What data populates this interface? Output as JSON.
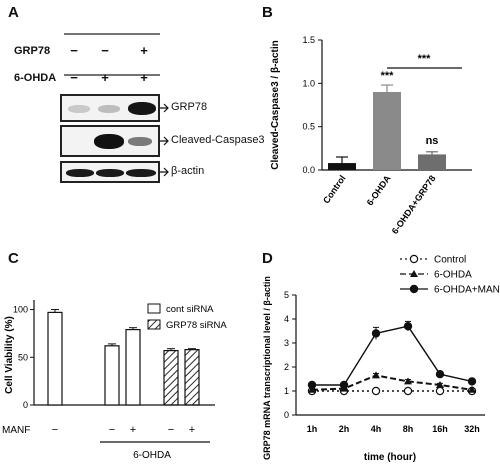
{
  "panels": {
    "a": "A",
    "b": "B",
    "c": "C",
    "d": "D"
  },
  "blot": {
    "rows": [
      {
        "label": "GRP78",
        "signs": [
          "−",
          "−",
          "+"
        ]
      },
      {
        "label": "6-OHDA",
        "signs": [
          "−",
          "+",
          "+"
        ]
      }
    ],
    "bands": [
      "GRP78",
      "Cleaved-Caspase3",
      "β-actin"
    ]
  },
  "chart_data": [
    {
      "id": "B",
      "type": "bar",
      "categories": [
        "Control",
        "6-OHDA",
        "6-OHDA+GRP78"
      ],
      "values": [
        0.08,
        0.9,
        0.18
      ],
      "errors": [
        0.07,
        0.08,
        0.03
      ],
      "colors": [
        "#111111",
        "#8a8a8a",
        "#6e6e6e"
      ],
      "ylabel": "Cleaved-Caspase3 / β-actin",
      "ylim": [
        0,
        1.5
      ],
      "yticks": [
        "0.0",
        "0.5",
        "1.0",
        "1.5"
      ],
      "annotations": [
        "***",
        "ns",
        "***"
      ]
    },
    {
      "id": "C",
      "type": "bar",
      "ylabel": "Cell Viability (%)",
      "ylim": [
        0,
        100
      ],
      "yticks": [
        "0",
        "50",
        "100"
      ],
      "series": [
        {
          "name": "cont siRNA",
          "values": [
            97,
            62,
            79
          ],
          "errors": [
            3,
            2,
            2
          ]
        },
        {
          "name": "GRP78 siRNA",
          "values": [
            57,
            58
          ],
          "errors": [
            2,
            1
          ]
        }
      ],
      "manf_label": "MANF",
      "manf_signs": [
        "−",
        "−",
        "+",
        "−",
        "+"
      ],
      "group_label": "6-OHDA"
    },
    {
      "id": "D",
      "type": "line",
      "x": [
        "1h",
        "2h",
        "4h",
        "8h",
        "16h",
        "32h"
      ],
      "xlabel": "time (hour)",
      "ylabel": "GRP78 mRNA transcriptional level / β-actin",
      "ylim": [
        0,
        5
      ],
      "yticks": [
        "0",
        "1",
        "2",
        "3",
        "4",
        "5"
      ],
      "series": [
        {
          "name": "Control",
          "values": [
            1.0,
            1.0,
            1.0,
            1.0,
            1.0,
            1.0
          ]
        },
        {
          "name": "6-OHDA",
          "values": [
            1.05,
            1.1,
            1.65,
            1.4,
            1.25,
            1.05
          ]
        },
        {
          "name": "6-OHDA+MANF",
          "values": [
            1.25,
            1.25,
            3.4,
            3.7,
            1.7,
            1.4
          ]
        }
      ],
      "errors": [
        [
          0.05,
          0.05,
          0.05,
          0.05,
          0.05,
          0.05
        ],
        [
          0.05,
          0.05,
          0.08,
          0.08,
          0.07,
          0.05
        ],
        [
          0.05,
          0.08,
          0.25,
          0.2,
          0.1,
          0.07
        ]
      ]
    }
  ]
}
